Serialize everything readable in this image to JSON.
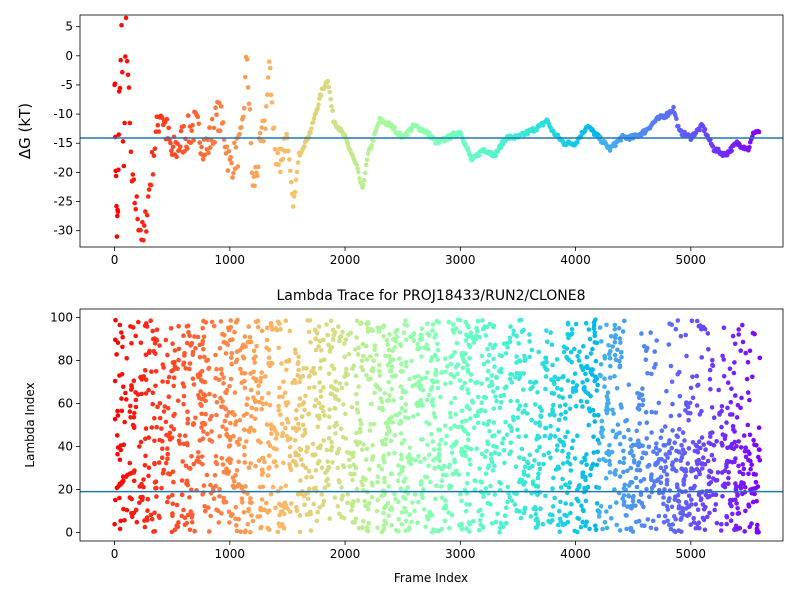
{
  "chart_data": [
    {
      "type": "scatter",
      "title": "",
      "xlabel": "",
      "ylabel": "ΔG (kT)",
      "xlim": [
        -300,
        5800
      ],
      "ylim": [
        -32.8,
        7.0
      ],
      "xticks": [
        0,
        1000,
        2000,
        3000,
        4000,
        5000
      ],
      "yticks": [
        5,
        0,
        -5,
        -10,
        -15,
        -20,
        -25,
        -30
      ],
      "hline": -14.1,
      "hline_color": "#1f77b4",
      "colormap": "rainbow (reversed: red at frame 0, violet at last frame)",
      "series": [
        {
          "x": [
            0,
            10,
            20,
            30,
            40,
            60,
            80,
            100,
            150,
            200,
            250,
            300,
            350,
            400,
            500,
            600,
            700,
            800,
            900,
            950,
            1000,
            1100,
            1150,
            1200,
            1300,
            1350,
            1400,
            1500,
            1550,
            1600,
            1700,
            1800,
            1850,
            1900,
            2000,
            2100,
            2150,
            2200,
            2300,
            2400,
            2500,
            2600,
            2700,
            2800,
            2900,
            3000,
            3100,
            3200,
            3300,
            3400,
            3500,
            3600,
            3700,
            3750,
            3800,
            3900,
            4000,
            4100,
            4200,
            4300,
            4400,
            4500,
            4600,
            4700,
            4800,
            4850,
            4900,
            5000,
            5100,
            5200,
            5300,
            5400,
            5500,
            5550,
            5600
          ],
          "y": [
            -2,
            -18,
            -30,
            -27,
            -8,
            4,
            -20,
            6,
            -22,
            -27,
            -32,
            -23,
            -15,
            -9,
            -17,
            -14,
            -12,
            -16,
            -10,
            -13,
            -19,
            -15,
            0,
            -23,
            -12,
            -2,
            -19,
            -14,
            -26,
            -17,
            -13,
            -6,
            -4,
            -11,
            -14,
            -19,
            -23,
            -17,
            -11,
            -12,
            -14,
            -12,
            -13,
            -15,
            -14,
            -13,
            -18,
            -16,
            -17,
            -14,
            -14,
            -13,
            -12,
            -11,
            -13,
            -15,
            -15,
            -12,
            -14,
            -16,
            -14,
            -14,
            -13,
            -11,
            -10,
            -9,
            -13,
            -14,
            -12,
            -16,
            -17,
            -15,
            -16,
            -13,
            -13
          ]
        }
      ]
    },
    {
      "type": "scatter",
      "title": "Lambda Trace for PROJ18433/RUN2/CLONE8",
      "xlabel": "Frame Index",
      "ylabel": "Lambda Index",
      "xlim": [
        -300,
        5800
      ],
      "ylim": [
        -4,
        104
      ],
      "xticks": [
        0,
        1000,
        2000,
        3000,
        4000,
        5000
      ],
      "yticks": [
        0,
        20,
        40,
        60,
        80,
        100
      ],
      "hline": 19,
      "hline_color": "#1f77b4",
      "colormap": "rainbow (reversed: red at frame 0, violet at last frame)",
      "series": [
        {
          "x_range": [
            0,
            5600
          ],
          "y_range": [
            0,
            99
          ],
          "description_values": "dense lambda-index samples between 0 and 99 across frames 0–5600"
        }
      ]
    }
  ]
}
